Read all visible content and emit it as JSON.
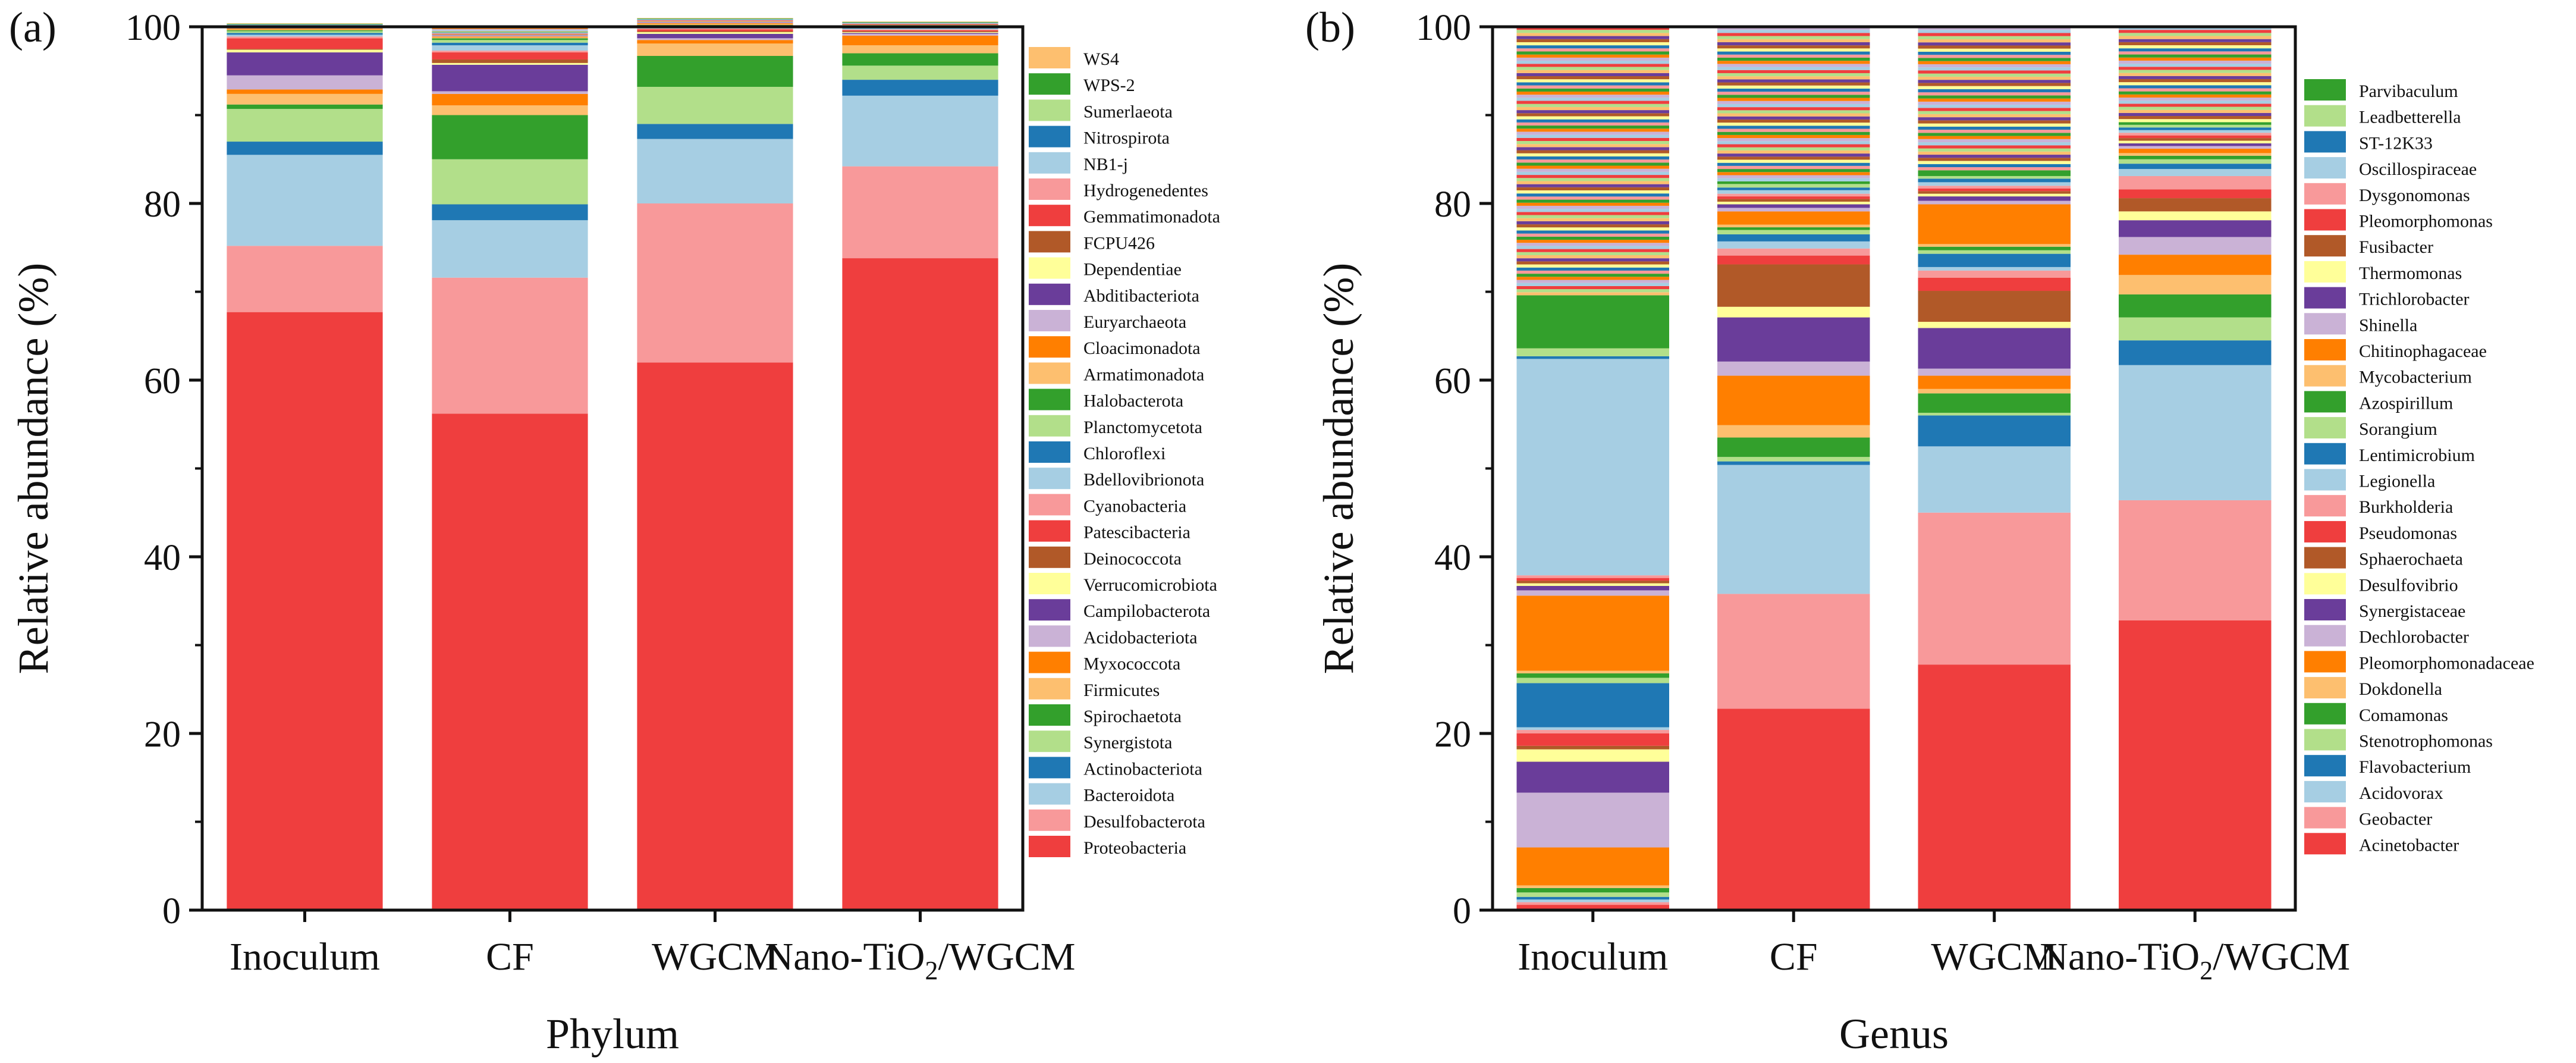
{
  "chart_data": [
    {
      "type": "bar",
      "stacked": true,
      "panel_label": "(a)",
      "title": "",
      "xlabel": "Phylum",
      "ylabel": "Relative abundance (%)",
      "ylim": [
        0,
        100
      ],
      "yticks": [
        "0",
        "20",
        "40",
        "60",
        "80",
        "100"
      ],
      "categories": [
        {
          "label": "Inoculum"
        },
        {
          "label": "CF"
        },
        {
          "label": "WGCM"
        },
        {
          "label": "Nano-TiO",
          "sub": "2",
          "suffix": "/WGCM"
        }
      ],
      "legend_position": "right",
      "series": [
        {
          "name": "Proteobacteria",
          "color": "#EF3E3E",
          "values": [
            67.7,
            56.2,
            62.0,
            73.8
          ]
        },
        {
          "name": "Desulfobacterota",
          "color": "#F8999A",
          "values": [
            7.5,
            15.4,
            18.0,
            10.4
          ]
        },
        {
          "name": "Bacteroidota",
          "color": "#A6CEE3",
          "values": [
            10.3,
            6.5,
            7.3,
            8.0
          ]
        },
        {
          "name": "Actinobacteriota",
          "color": "#1F78B4",
          "values": [
            1.5,
            1.8,
            1.7,
            1.8
          ]
        },
        {
          "name": "Synergistota",
          "color": "#B2DF8A",
          "values": [
            3.7,
            5.1,
            4.2,
            1.6
          ]
        },
        {
          "name": "Spirochaetota",
          "color": "#33A02C",
          "values": [
            0.5,
            5.0,
            3.5,
            1.4
          ]
        },
        {
          "name": "Firmicutes",
          "color": "#FDBF6F",
          "values": [
            1.2,
            1.1,
            1.4,
            0.9
          ]
        },
        {
          "name": "Myxococcota",
          "color": "#FF7F00",
          "values": [
            0.5,
            1.3,
            0.4,
            1.1
          ]
        },
        {
          "name": "Acidobacteriota",
          "color": "#CAB2D6",
          "values": [
            1.6,
            0.3,
            0.2,
            0.2
          ]
        },
        {
          "name": "Campilobacterota",
          "color": "#6A3D9A",
          "values": [
            2.6,
            3.0,
            0.5,
            0.1
          ]
        },
        {
          "name": "Verrucomicrobiota",
          "color": "#FFFF99",
          "values": [
            0.3,
            0.2,
            0.2,
            0.1
          ]
        },
        {
          "name": "Deinococcota",
          "color": "#B15928",
          "values": [
            0.1,
            0.4,
            0.1,
            0.1
          ]
        },
        {
          "name": "Patescibacteria",
          "color": "#EF3E3E",
          "values": [
            1.2,
            0.8,
            0.2,
            0.1
          ]
        },
        {
          "name": "Cyanobacteria",
          "color": "#F8999A",
          "values": [
            0.2,
            0.2,
            0.1,
            0.1
          ]
        },
        {
          "name": "Bdellovibrionota",
          "color": "#A6CEE3",
          "values": [
            0.2,
            0.6,
            0.1,
            0.1
          ]
        },
        {
          "name": "Chloroflexi",
          "color": "#1F78B4",
          "values": [
            0.2,
            0.3,
            0.1,
            0.05
          ]
        },
        {
          "name": "Planctomycetota",
          "color": "#B2DF8A",
          "values": [
            0.2,
            0.3,
            0.1,
            0.05
          ]
        },
        {
          "name": "Halobacterota",
          "color": "#33A02C",
          "values": [
            0.1,
            0.2,
            0.1,
            0.05
          ]
        },
        {
          "name": "Armatimonadota",
          "color": "#FDBF6F",
          "values": [
            0.1,
            0.1,
            0.1,
            0.05
          ]
        },
        {
          "name": "Cloacimonadota",
          "color": "#FF7F00",
          "values": [
            0.1,
            0.1,
            0.1,
            0.05
          ]
        },
        {
          "name": "Euryarchaeota",
          "color": "#CAB2D6",
          "values": [
            0.1,
            0.1,
            0.1,
            0.05
          ]
        },
        {
          "name": "Abditibacteriota",
          "color": "#6A3D9A",
          "values": [
            0.05,
            0.05,
            0.05,
            0.05
          ]
        },
        {
          "name": "Dependentiae",
          "color": "#FFFF99",
          "values": [
            0.05,
            0.05,
            0.05,
            0.05
          ]
        },
        {
          "name": "FCPU426",
          "color": "#B15928",
          "values": [
            0.05,
            0.05,
            0.05,
            0.05
          ]
        },
        {
          "name": "Gemmatimonadota",
          "color": "#EF3E3E",
          "values": [
            0.05,
            0.05,
            0.05,
            0.05
          ]
        },
        {
          "name": "Hydrogenedentes",
          "color": "#F8999A",
          "values": [
            0.05,
            0.05,
            0.05,
            0.05
          ]
        },
        {
          "name": "NB1-j",
          "color": "#A6CEE3",
          "values": [
            0.05,
            0.05,
            0.05,
            0.05
          ]
        },
        {
          "name": "Nitrospirota",
          "color": "#1F78B4",
          "values": [
            0.05,
            0.05,
            0.05,
            0.05
          ]
        },
        {
          "name": "Sumerlaeota",
          "color": "#B2DF8A",
          "values": [
            0.05,
            0.05,
            0.05,
            0.05
          ]
        },
        {
          "name": "WPS-2",
          "color": "#33A02C",
          "values": [
            0.05,
            0.05,
            0.05,
            0.05
          ]
        },
        {
          "name": "WS4",
          "color": "#FDBF6F",
          "values": [
            0.05,
            0.05,
            0.05,
            0.05
          ]
        }
      ]
    },
    {
      "type": "bar",
      "stacked": true,
      "panel_label": "(b)",
      "title": "",
      "xlabel": "Genus",
      "ylabel": "Relative abundance (%)",
      "ylim": [
        0,
        100
      ],
      "yticks": [
        "0",
        "20",
        "40",
        "60",
        "80",
        "100"
      ],
      "categories": [
        {
          "label": "Inoculum"
        },
        {
          "label": "CF"
        },
        {
          "label": "WGCM"
        },
        {
          "label": "Nano-TiO",
          "sub": "2",
          "suffix": "/WGCM"
        }
      ],
      "legend_position": "right",
      "other_note": "remaining top segments are many minor genera (not labeled)",
      "series": [
        {
          "name": "Acinetobacter",
          "color": "#EF3E3E",
          "values": [
            0.6,
            22.8,
            27.8,
            32.8
          ]
        },
        {
          "name": "Geobacter",
          "color": "#F8999A",
          "values": [
            0.3,
            13.0,
            17.2,
            13.6
          ]
        },
        {
          "name": "Acidovorax",
          "color": "#A6CEE3",
          "values": [
            0.3,
            14.6,
            7.5,
            15.3
          ]
        },
        {
          "name": "Flavobacterium",
          "color": "#1F78B4",
          "values": [
            0.3,
            0.4,
            3.5,
            2.8
          ]
        },
        {
          "name": "Stenotrophomonas",
          "color": "#B2DF8A",
          "values": [
            0.5,
            0.5,
            0.3,
            2.6
          ]
        },
        {
          "name": "Comamonas",
          "color": "#33A02C",
          "values": [
            0.5,
            2.2,
            2.2,
            2.6
          ]
        },
        {
          "name": "Dokdonella",
          "color": "#FDBF6F",
          "values": [
            0.3,
            1.4,
            0.5,
            2.2
          ]
        },
        {
          "name": "Pleomorphomonadaceae",
          "color": "#FF7F00",
          "values": [
            4.3,
            5.6,
            1.5,
            2.3
          ]
        },
        {
          "name": "Dechlorobacter",
          "color": "#CAB2D6",
          "values": [
            6.2,
            1.6,
            0.8,
            2.0
          ]
        },
        {
          "name": "Synergistaceae",
          "color": "#6A3D9A",
          "values": [
            3.5,
            5.0,
            4.6,
            1.9
          ]
        },
        {
          "name": "Desulfovibrio",
          "color": "#FFFF99",
          "values": [
            1.4,
            1.2,
            0.7,
            1.0
          ]
        },
        {
          "name": "Sphaerochaeta",
          "color": "#B15928",
          "values": [
            0.4,
            4.8,
            3.5,
            1.5
          ]
        },
        {
          "name": "Pseudomonas",
          "color": "#EF3E3E",
          "values": [
            1.4,
            1.0,
            1.5,
            1.0
          ]
        },
        {
          "name": "Burkholderia",
          "color": "#F8999A",
          "values": [
            0.4,
            0.8,
            0.8,
            1.5
          ]
        },
        {
          "name": "Legionella",
          "color": "#A6CEE3",
          "values": [
            0.3,
            0.8,
            0.4,
            0.8
          ]
        },
        {
          "name": "Lentimicrobium",
          "color": "#1F78B4",
          "values": [
            5.0,
            0.8,
            1.5,
            0.6
          ]
        },
        {
          "name": "Sorangium",
          "color": "#B2DF8A",
          "values": [
            0.6,
            0.5,
            0.4,
            0.5
          ]
        },
        {
          "name": "Azospirillum",
          "color": "#33A02C",
          "values": [
            0.5,
            0.3,
            0.4,
            0.4
          ]
        },
        {
          "name": "Mycobacterium",
          "color": "#FDBF6F",
          "values": [
            0.3,
            0.3,
            0.3,
            0.3
          ]
        },
        {
          "name": "Chitinophagaceae",
          "color": "#FF7F00",
          "values": [
            8.5,
            1.5,
            4.5,
            0.5
          ]
        },
        {
          "name": "Shinella",
          "color": "#CAB2D6",
          "values": [
            0.6,
            0.4,
            0.4,
            0.3
          ]
        },
        {
          "name": "Trichlorobacter",
          "color": "#6A3D9A",
          "values": [
            0.5,
            0.4,
            0.5,
            0.3
          ]
        },
        {
          "name": "Thermomonas",
          "color": "#FFFF99",
          "values": [
            0.3,
            0.3,
            0.3,
            0.3
          ]
        },
        {
          "name": "Fusibacter",
          "color": "#B15928",
          "values": [
            0.3,
            0.3,
            0.3,
            0.3
          ]
        },
        {
          "name": "Pleomorphomonas",
          "color": "#EF3E3E",
          "values": [
            0.3,
            0.3,
            0.3,
            0.3
          ]
        },
        {
          "name": "Dysgonomonas",
          "color": "#F8999A",
          "values": [
            0.3,
            0.3,
            0.3,
            0.3
          ]
        },
        {
          "name": "Oscillospiraceae",
          "color": "#A6CEE3",
          "values": [
            24.5,
            0.4,
            0.4,
            0.3
          ]
        },
        {
          "name": "ST-12K33",
          "color": "#1F78B4",
          "values": [
            0.3,
            0.3,
            0.4,
            0.3
          ]
        },
        {
          "name": "Leadbetterella",
          "color": "#B2DF8A",
          "values": [
            0.9,
            0.4,
            0.3,
            0.3
          ]
        },
        {
          "name": "Parvibaculum",
          "color": "#33A02C",
          "values": [
            6.0,
            0.3,
            0.3,
            0.3
          ]
        }
      ]
    }
  ]
}
